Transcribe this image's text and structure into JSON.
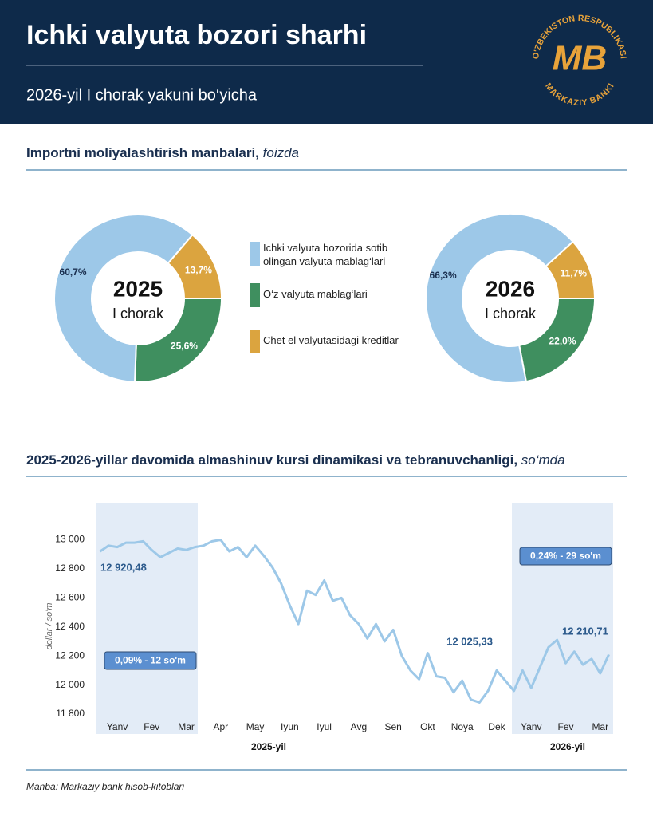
{
  "header": {
    "title": "Ichki valyuta  bozori sharhi",
    "subtitle": "2026-yil I chorak yakuni bo‘yicha",
    "logo": {
      "top": "O'ZBEKISTON RESPUBLIKASI",
      "bottom": "MARKAZIY BANKI",
      "mark": "MB"
    }
  },
  "section1": {
    "title": "Importni moliyalashtirish manbalari,",
    "unit": "foizda"
  },
  "section2": {
    "title": "2025-2026-yillar davomida almashinuv kursi dinamikasi va tebranuvchanligi,",
    "unit": "so‘mda"
  },
  "source": "Manba: Markaziy bank hisob-kitoblari",
  "chart_data": [
    {
      "type": "pie",
      "center_title": "2025",
      "center_subtitle": "I chorak",
      "categories": [
        "Ichki valyuta bozorida sotib olingan valyuta mablag‘lari",
        "O‘z valyuta mablag‘lari",
        "Chet el valyutasidagi kreditlar"
      ],
      "values": [
        60.7,
        25.6,
        13.7
      ],
      "value_labels": [
        "60,7%",
        "25,6%",
        "13,7%"
      ],
      "colors": [
        "#9dc8e8",
        "#3f8f5f",
        "#dba43f"
      ]
    },
    {
      "type": "pie",
      "center_title": "2026",
      "center_subtitle": "I chorak",
      "values": [
        66.3,
        22.0,
        11.7
      ],
      "value_labels": [
        "66,3%",
        "22,0%",
        "11,7%"
      ],
      "colors": [
        "#9dc8e8",
        "#3f8f5f",
        "#dba43f"
      ]
    },
    {
      "type": "line",
      "y_label": "dollar / so'm",
      "color": "#9dc8e8",
      "categories": [
        null,
        null,
        "Yanv",
        null,
        null,
        null,
        "Fev",
        null,
        null,
        null,
        "Mar",
        null,
        null,
        null,
        "Apr",
        null,
        null,
        null,
        "May",
        null,
        null,
        null,
        "Iyun",
        null,
        null,
        null,
        "Iyul",
        null,
        null,
        null,
        "Avg",
        null,
        null,
        null,
        "Sen",
        null,
        null,
        null,
        "Okt",
        null,
        null,
        null,
        "Noya",
        null,
        null,
        null,
        "Dek",
        null,
        null,
        null,
        "Yanv",
        null,
        null,
        null,
        "Fev",
        null,
        null,
        null,
        "Mar",
        null
      ],
      "values": [
        12920,
        12960,
        12950,
        12980,
        12980,
        12990,
        12930,
        12880,
        12910,
        12940,
        12930,
        12950,
        12960,
        12990,
        13000,
        12920,
        12950,
        12880,
        12960,
        12890,
        12810,
        12700,
        12550,
        12420,
        12650,
        12620,
        12720,
        12580,
        12600,
        12480,
        12420,
        12320,
        12420,
        12300,
        12380,
        12200,
        12100,
        12040,
        12220,
        12060,
        12050,
        11950,
        12030,
        11900,
        11880,
        11960,
        12100,
        12030,
        11960,
        12100,
        11980,
        12120,
        12260,
        12310,
        12150,
        12230,
        12140,
        12180,
        12080,
        12210
      ],
      "ylim": [
        11800,
        13250
      ],
      "yticks": [
        {
          "value": 11800,
          "label": "11 800"
        },
        {
          "value": 12000,
          "label": "12 000"
        },
        {
          "value": 12200,
          "label": "12 200"
        },
        {
          "value": 12400,
          "label": "12 400"
        },
        {
          "value": 12600,
          "label": "12 600"
        },
        {
          "value": 12800,
          "label": "12 800"
        },
        {
          "value": 13000,
          "label": "13 000"
        }
      ],
      "year_labels": [
        "2025-yil",
        "2026-yil"
      ],
      "annotations": [
        "12 920,48",
        "12 025,33",
        "12 210,71"
      ],
      "volatility_boxes": [
        "0,09% - 12 so'm",
        "0,24% - 29 so'm"
      ]
    }
  ]
}
